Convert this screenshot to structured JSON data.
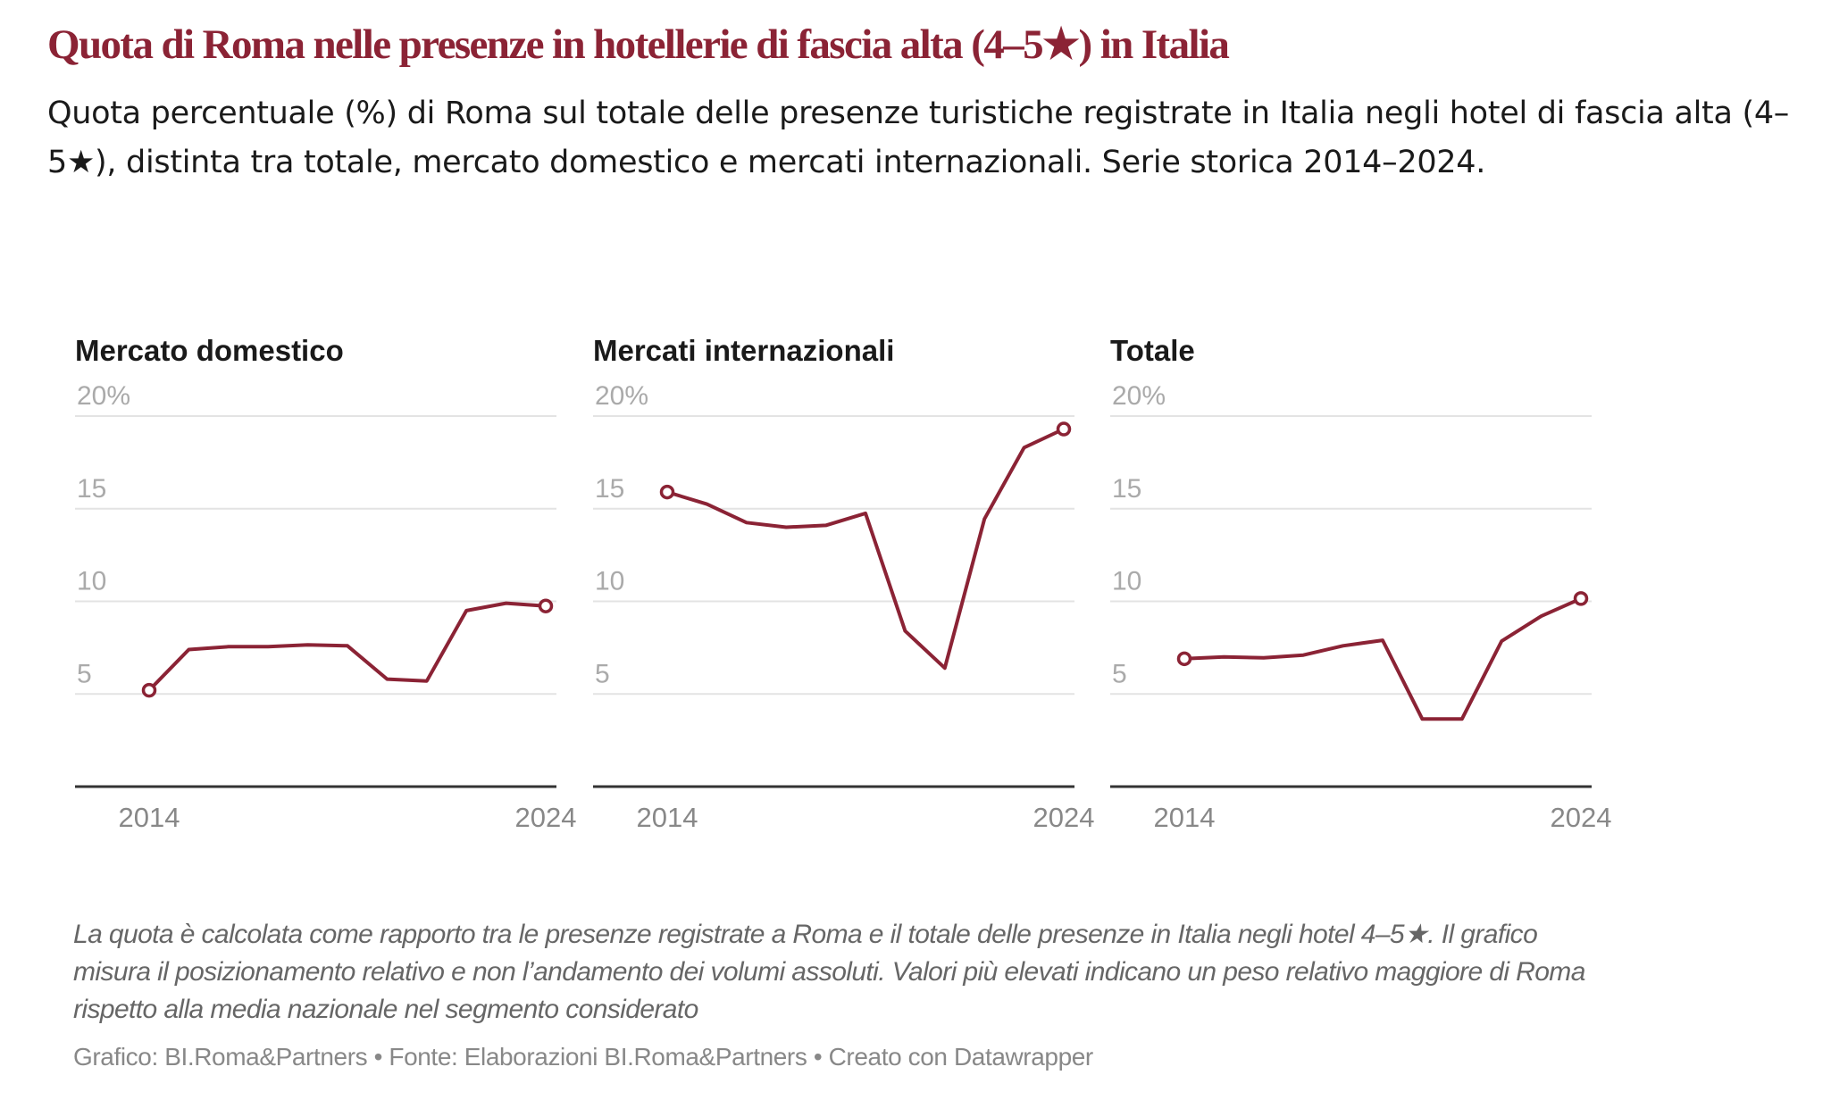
{
  "header": {
    "title": "Quota di Roma nelle presenze in hotellerie di fascia alta (4–5★) in Italia",
    "subtitle": "Quota percentuale (%) di Roma sul totale delle presenze turistiche registrate in Italia negli hotel di fascia alta (4–5★), distinta tra totale, mercato domestico e mercati internazionali. Serie storica 2014–2024."
  },
  "colors": {
    "line": "#8b2335",
    "title": "#8b2335",
    "grid": "#e3e3e3",
    "axis": "#333333",
    "tick_label": "#aaaaaa"
  },
  "chart_data": [
    {
      "type": "line",
      "title": "Mercato domestico",
      "x": [
        2014,
        2015,
        2016,
        2017,
        2018,
        2019,
        2020,
        2021,
        2022,
        2023,
        2024
      ],
      "values": [
        5.2,
        7.4,
        7.55,
        7.55,
        7.65,
        7.6,
        5.8,
        5.7,
        9.5,
        9.9,
        9.75
      ],
      "ylim": [
        0,
        20
      ],
      "yticks": [
        5,
        10,
        15,
        20
      ],
      "ytick_labels": [
        "5",
        "10",
        "15",
        "20%"
      ],
      "xtick_labels": [
        "2014",
        "2024"
      ],
      "grid": true
    },
    {
      "type": "line",
      "title": "Mercati internazionali",
      "x": [
        2014,
        2015,
        2016,
        2017,
        2018,
        2019,
        2020,
        2021,
        2022,
        2023,
        2024
      ],
      "values": [
        15.9,
        15.25,
        14.25,
        14.0,
        14.1,
        14.75,
        8.4,
        6.4,
        14.45,
        18.3,
        19.3
      ],
      "ylim": [
        0,
        20
      ],
      "yticks": [
        5,
        10,
        15,
        20
      ],
      "ytick_labels": [
        "5",
        "10",
        "15",
        "20%"
      ],
      "xtick_labels": [
        "2014",
        "2024"
      ],
      "grid": true
    },
    {
      "type": "line",
      "title": "Totale",
      "x": [
        2014,
        2015,
        2016,
        2017,
        2018,
        2019,
        2020,
        2021,
        2022,
        2023,
        2024
      ],
      "values": [
        6.9,
        7.0,
        6.95,
        7.1,
        7.6,
        7.9,
        3.65,
        3.65,
        7.85,
        9.2,
        10.15
      ],
      "ylim": [
        0,
        20
      ],
      "yticks": [
        5,
        10,
        15,
        20
      ],
      "ytick_labels": [
        "5",
        "10",
        "15",
        "20%"
      ],
      "xtick_labels": [
        "2014",
        "2024"
      ],
      "grid": true
    }
  ],
  "footer": {
    "notes": "La quota è calcolata come rapporto tra le presenze registrate a Roma e il totale delle presenze in Italia negli hotel 4–5★. Il grafico misura il posizionamento relativo e non l’andamento dei volumi assoluti. Valori più elevati indicano un peso relativo maggiore di Roma rispetto alla media nazionale nel segmento considerato",
    "credit": "Grafico: BI.Roma&Partners • Fonte: Elaborazioni BI.Roma&Partners • Creato con Datawrapper"
  }
}
